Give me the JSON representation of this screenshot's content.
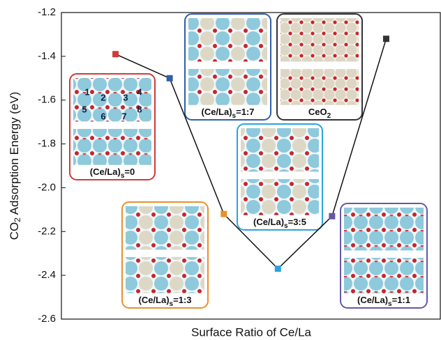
{
  "chart_data": {
    "type": "line",
    "y_label": [
      "CO",
      "2",
      " Adsorption Energy (eV)"
    ],
    "x_label": "Surface Ratio of Ce/La",
    "categories": [
      null,
      null,
      null,
      null,
      null,
      null
    ],
    "ylim": [
      -2.6,
      -1.2
    ],
    "yticks": [
      -2.6,
      -2.4,
      -2.2,
      {
        "value": -2,
        "label": "-2.0"
      },
      -1.8,
      -1.6,
      -1.4,
      -1.2
    ],
    "line_color": "#111111",
    "series": [
      {
        "values": [
          -1.39,
          -1.5,
          -2.12,
          -2.37,
          -2.13,
          -1.32
        ],
        "colors": [
          "#d23a3a",
          "#2f5fa8",
          "#e8902a",
          "#2aa3dd",
          "#6657a8",
          "#333333"
        ]
      }
    ],
    "point_labels": [
      [
        "(Ce/La)",
        "s",
        "=0"
      ],
      [
        "(Ce/La)",
        "s",
        "=1:7"
      ],
      [
        "(Ce/La)",
        "s",
        "=1:3"
      ],
      [
        "(Ce/La)",
        "s",
        "=3:5"
      ],
      [
        "(Ce/La)",
        "s",
        "=1:1"
      ],
      [
        "CeO",
        "2",
        ""
      ]
    ],
    "site_labels": [
      "1",
      "2",
      "3",
      "4",
      "5",
      "6",
      "7",
      "8"
    ]
  }
}
